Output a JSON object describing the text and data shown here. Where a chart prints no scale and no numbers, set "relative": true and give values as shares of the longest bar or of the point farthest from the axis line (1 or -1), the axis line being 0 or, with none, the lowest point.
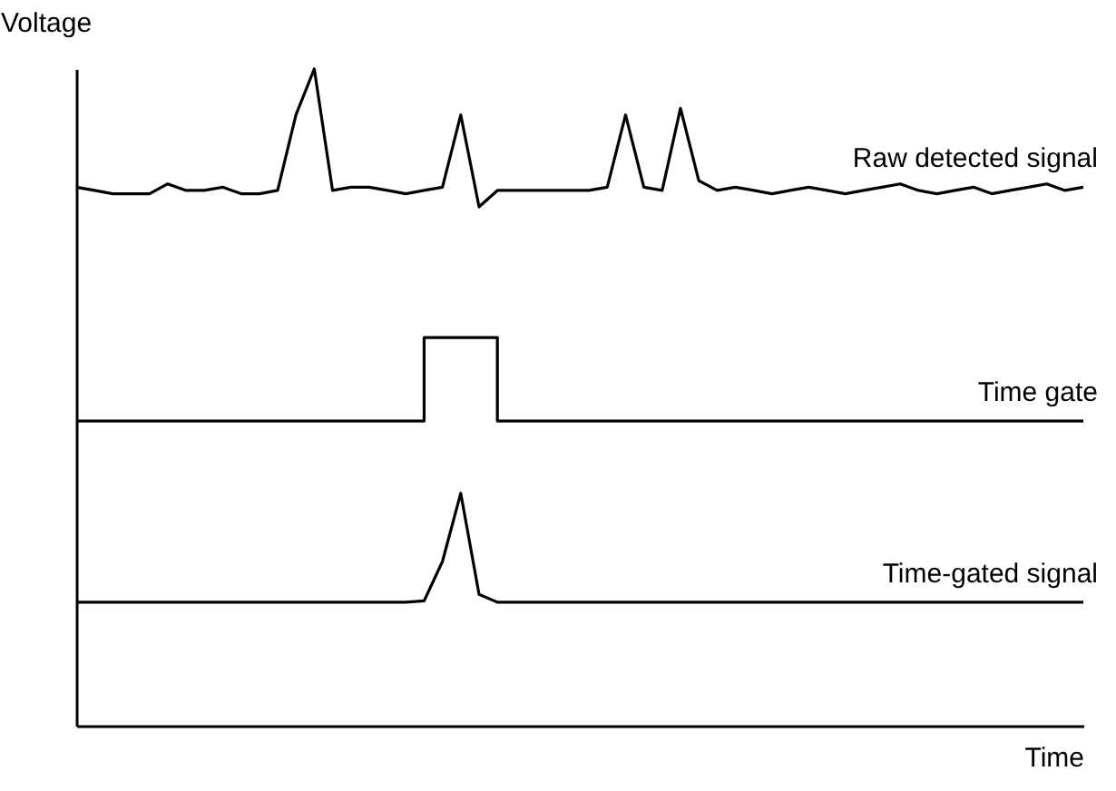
{
  "chart_data": {
    "type": "line",
    "relative": true,
    "xlabel": "Time",
    "ylabel": "Voltage",
    "grid": false,
    "marker": "none",
    "line_style": "solid",
    "tick_labels": false,
    "categories": [
      null,
      null,
      null,
      null,
      null,
      null,
      null,
      null,
      null,
      null,
      null,
      null,
      null,
      null,
      null,
      null,
      null,
      null,
      null,
      null,
      null,
      null,
      null,
      null,
      null,
      null,
      null,
      null,
      null,
      null,
      null,
      null,
      null,
      null,
      null,
      null,
      null,
      null,
      null,
      null,
      null,
      null,
      null,
      null,
      null,
      null,
      null,
      null,
      null,
      null,
      null,
      null,
      null,
      null,
      null,
      null
    ],
    "series": [
      {
        "name": "Raw detected signal",
        "color": "#000000",
        "values": [
          0.82,
          0.815,
          0.81,
          0.81,
          0.81,
          0.825,
          0.815,
          0.815,
          0.82,
          0.81,
          0.81,
          0.815,
          0.93,
          1.0,
          0.815,
          0.82,
          0.82,
          0.815,
          0.81,
          0.815,
          0.82,
          0.93,
          0.79,
          0.815,
          0.815,
          0.815,
          0.815,
          0.815,
          0.815,
          0.82,
          0.93,
          0.82,
          0.815,
          0.94,
          0.83,
          0.815,
          0.82,
          0.815,
          0.81,
          0.815,
          0.82,
          0.815,
          0.81,
          0.815,
          0.82,
          0.825,
          0.815,
          0.81,
          0.815,
          0.82,
          0.81,
          0.815,
          0.82,
          0.825,
          0.815,
          0.82
        ]
      },
      {
        "name": "Time gate",
        "type": "step",
        "color": "#000000",
        "values": [
          0.464,
          0.464,
          0.464,
          0.464,
          0.464,
          0.464,
          0.464,
          0.464,
          0.464,
          0.464,
          0.464,
          0.464,
          0.464,
          0.464,
          0.464,
          0.464,
          0.464,
          0.464,
          0.464,
          0.591,
          0.591,
          0.591,
          0.591,
          0.464,
          0.464,
          0.464,
          0.464,
          0.464,
          0.464,
          0.464,
          0.464,
          0.464,
          0.464,
          0.464,
          0.464,
          0.464,
          0.464,
          0.464,
          0.464,
          0.464,
          0.464,
          0.464,
          0.464,
          0.464,
          0.464,
          0.464,
          0.464,
          0.464,
          0.464,
          0.464,
          0.464,
          0.464,
          0.464,
          0.464,
          0.464,
          0.464
        ]
      },
      {
        "name": "Time-gated signal",
        "color": "#000000",
        "values": [
          0.188,
          0.188,
          0.188,
          0.188,
          0.188,
          0.188,
          0.188,
          0.188,
          0.188,
          0.188,
          0.188,
          0.188,
          0.188,
          0.188,
          0.188,
          0.188,
          0.188,
          0.188,
          0.188,
          0.19,
          0.25,
          0.354,
          0.2,
          0.188,
          0.188,
          0.188,
          0.188,
          0.188,
          0.188,
          0.188,
          0.188,
          0.188,
          0.188,
          0.188,
          0.188,
          0.188,
          0.188,
          0.188,
          0.188,
          0.188,
          0.188,
          0.188,
          0.188,
          0.188,
          0.188,
          0.188,
          0.188,
          0.188,
          0.188,
          0.188,
          0.188,
          0.188,
          0.188,
          0.188,
          0.188,
          0.188
        ]
      }
    ]
  }
}
